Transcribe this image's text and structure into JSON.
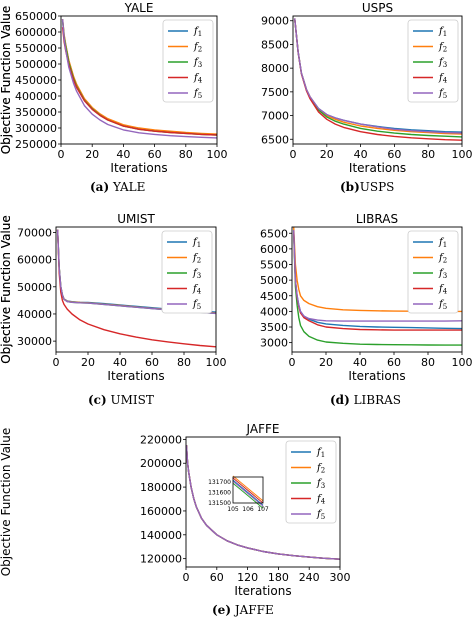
{
  "figure": {
    "captions": [
      {
        "tag": "(a)",
        "text": "YALE"
      },
      {
        "tag": "(b)",
        "text": "USPS"
      },
      {
        "tag": "(c)",
        "text": "UMIST"
      },
      {
        "tag": "(d)",
        "text": "LIBRAS"
      },
      {
        "tag": "(e)",
        "text": "JAFFE"
      }
    ],
    "series_colors": [
      "#1f77b4",
      "#ff7f0e",
      "#2ca02c",
      "#d62728",
      "#9467bd"
    ]
  },
  "chart_data": [
    {
      "type": "line",
      "title": "YALE",
      "xlabel": "Iterations",
      "ylabel": "Objective Function Value",
      "xlim": [
        0,
        100
      ],
      "ylim": [
        250000,
        650000
      ],
      "xticks": [
        0,
        20,
        40,
        60,
        80,
        100
      ],
      "yticks": [
        250000,
        300000,
        350000,
        400000,
        450000,
        500000,
        550000,
        600000,
        650000
      ],
      "ytick_labels": [
        "250000",
        "300000",
        "350000",
        "400000",
        "450000",
        "500000",
        "550000",
        "600000",
        "650000"
      ],
      "grid": false,
      "legend": "top-right",
      "x": [
        1,
        2,
        3,
        5,
        8,
        10,
        15,
        20,
        25,
        30,
        40,
        50,
        60,
        70,
        80,
        90,
        100
      ],
      "series": [
        {
          "name": "f1",
          "values": [
            640000,
            590000,
            560000,
            510000,
            460000,
            435000,
            390000,
            362000,
            342000,
            327000,
            308000,
            298000,
            292000,
            288000,
            285000,
            282000,
            280000
          ]
        },
        {
          "name": "f2",
          "values": [
            640000,
            592000,
            562000,
            512000,
            462000,
            437000,
            392000,
            364000,
            344000,
            329000,
            310000,
            300000,
            294000,
            290000,
            286000,
            283000,
            281000
          ]
        },
        {
          "name": "f3",
          "values": [
            635000,
            585000,
            555000,
            505000,
            455000,
            430000,
            387000,
            360000,
            340000,
            325000,
            306000,
            296000,
            290000,
            286000,
            283000,
            280000,
            278000
          ]
        },
        {
          "name": "f4",
          "values": [
            615000,
            570000,
            542000,
            497000,
            450000,
            427000,
            385000,
            358000,
            339000,
            325000,
            306000,
            296000,
            290000,
            286000,
            283000,
            280000,
            278000
          ]
        },
        {
          "name": "f5",
          "values": [
            640000,
            580000,
            545000,
            490000,
            440000,
            415000,
            370000,
            343000,
            325000,
            311000,
            294000,
            285000,
            280000,
            276000,
            273000,
            271000,
            269000
          ]
        }
      ]
    },
    {
      "type": "line",
      "title": "USPS",
      "xlabel": "Iterations",
      "ylabel": "Objective Function Value",
      "xlim": [
        0,
        100
      ],
      "ylim": [
        6400,
        9100
      ],
      "xticks": [
        0,
        20,
        40,
        60,
        80,
        100
      ],
      "yticks": [
        6500,
        7000,
        7500,
        8000,
        8500,
        9000
      ],
      "ytick_labels": [
        "6500",
        "7000",
        "7500",
        "8000",
        "8500",
        "9000"
      ],
      "grid": false,
      "legend": "top-right",
      "x": [
        1,
        2,
        3,
        5,
        8,
        10,
        15,
        20,
        25,
        30,
        40,
        50,
        60,
        70,
        80,
        90,
        100
      ],
      "series": [
        {
          "name": "f1",
          "values": [
            9050,
            8700,
            8350,
            7900,
            7550,
            7400,
            7150,
            7020,
            6950,
            6900,
            6820,
            6770,
            6730,
            6700,
            6680,
            6660,
            6650
          ]
        },
        {
          "name": "f2",
          "values": [
            9050,
            8700,
            8350,
            7900,
            7550,
            7400,
            7140,
            7000,
            6920,
            6860,
            6780,
            6730,
            6690,
            6660,
            6640,
            6620,
            6610
          ]
        },
        {
          "name": "f3",
          "values": [
            9050,
            8700,
            8340,
            7890,
            7540,
            7390,
            7120,
            6970,
            6880,
            6820,
            6730,
            6670,
            6630,
            6600,
            6580,
            6565,
            6550
          ]
        },
        {
          "name": "f4",
          "values": [
            9050,
            8700,
            8340,
            7880,
            7520,
            7360,
            7080,
            6920,
            6820,
            6750,
            6660,
            6600,
            6560,
            6530,
            6510,
            6490,
            6480
          ]
        },
        {
          "name": "f5",
          "values": [
            9050,
            8700,
            8350,
            7900,
            7550,
            7400,
            7150,
            7020,
            6950,
            6900,
            6820,
            6760,
            6710,
            6680,
            6660,
            6640,
            6630
          ]
        }
      ]
    },
    {
      "type": "line",
      "title": "UMIST",
      "xlabel": "Iterations",
      "ylabel": "Objective Function Value",
      "xlim": [
        0,
        100
      ],
      "ylim": [
        26000,
        72000
      ],
      "xticks": [
        0,
        20,
        40,
        60,
        80,
        100
      ],
      "yticks": [
        30000,
        40000,
        50000,
        60000,
        70000
      ],
      "ytick_labels": [
        "30000",
        "40000",
        "50000",
        "60000",
        "70000"
      ],
      "grid": false,
      "legend": "top-right",
      "x": [
        1,
        2,
        3,
        4,
        5,
        7,
        10,
        15,
        20,
        30,
        40,
        50,
        60,
        70,
        80,
        90,
        100
      ],
      "series": [
        {
          "name": "f1",
          "values": [
            71000,
            57000,
            50000,
            47000,
            45500,
            44800,
            44500,
            44300,
            44200,
            43800,
            43300,
            42800,
            42300,
            41800,
            41400,
            41000,
            40700
          ]
        },
        {
          "name": "f2",
          "values": [
            71000,
            57000,
            50000,
            47000,
            45500,
            44700,
            44400,
            44200,
            44100,
            43600,
            43100,
            42600,
            42100,
            41600,
            41100,
            40700,
            40300
          ]
        },
        {
          "name": "f3",
          "values": [
            71000,
            57000,
            50000,
            47000,
            45400,
            44600,
            44300,
            44100,
            44000,
            43500,
            43000,
            42500,
            42000,
            41500,
            41000,
            40600,
            40200
          ]
        },
        {
          "name": "f4",
          "values": [
            71000,
            55000,
            48000,
            45000,
            43500,
            41800,
            40000,
            37800,
            36300,
            34200,
            32700,
            31500,
            30500,
            29700,
            29000,
            28400,
            27900
          ]
        },
        {
          "name": "f5",
          "values": [
            71000,
            57000,
            50000,
            47000,
            45400,
            44600,
            44300,
            44100,
            44000,
            43500,
            43000,
            42500,
            42000,
            41500,
            41000,
            40600,
            40200
          ]
        }
      ]
    },
    {
      "type": "line",
      "title": "LIBRAS",
      "xlabel": "Iterations",
      "ylabel": "Objective Function Value",
      "xlim": [
        0,
        100
      ],
      "ylim": [
        2700,
        6700
      ],
      "xticks": [
        0,
        20,
        40,
        60,
        80,
        100
      ],
      "yticks": [
        3000,
        3500,
        4000,
        4500,
        5000,
        5500,
        6000,
        6500
      ],
      "ytick_labels": [
        "3000",
        "3500",
        "4000",
        "4500",
        "5000",
        "5500",
        "6000",
        "6500"
      ],
      "grid": false,
      "legend": "top-right",
      "x": [
        1,
        2,
        3,
        4,
        5,
        7,
        10,
        15,
        20,
        30,
        40,
        50,
        60,
        70,
        80,
        90,
        100
      ],
      "series": [
        {
          "name": "f1",
          "values": [
            6600,
            5000,
            4500,
            4200,
            4000,
            3850,
            3750,
            3650,
            3600,
            3550,
            3520,
            3500,
            3490,
            3480,
            3470,
            3460,
            3450
          ]
        },
        {
          "name": "f2",
          "values": [
            6700,
            5500,
            5000,
            4700,
            4500,
            4350,
            4250,
            4150,
            4100,
            4050,
            4030,
            4020,
            4010,
            4005,
            4000,
            4000,
            4000
          ]
        },
        {
          "name": "f3",
          "values": [
            6500,
            4800,
            4200,
            3800,
            3550,
            3350,
            3200,
            3080,
            3020,
            2980,
            2950,
            2940,
            2935,
            2930,
            2925,
            2922,
            2920
          ]
        },
        {
          "name": "f4",
          "values": [
            6550,
            5000,
            4450,
            4150,
            3950,
            3800,
            3700,
            3570,
            3500,
            3450,
            3420,
            3410,
            3400,
            3400,
            3400,
            3400,
            3400
          ]
        },
        {
          "name": "f5",
          "values": [
            6600,
            5000,
            4500,
            4200,
            4000,
            3850,
            3770,
            3720,
            3700,
            3690,
            3690,
            3690,
            3690,
            3690,
            3690,
            3690,
            3700
          ]
        }
      ]
    },
    {
      "type": "line",
      "title": "JAFFE",
      "xlabel": "Iterations",
      "ylabel": "Objective Function Value",
      "xlim": [
        0,
        300
      ],
      "ylim": [
        113000,
        222000
      ],
      "xticks": [
        0,
        60,
        120,
        180,
        240,
        300
      ],
      "yticks": [
        120000,
        140000,
        160000,
        180000,
        200000,
        220000
      ],
      "ytick_labels": [
        "120000",
        "140000",
        "160000",
        "180000",
        "200000",
        "220000"
      ],
      "grid": false,
      "legend": "top-right",
      "x": [
        1,
        3,
        5,
        10,
        15,
        20,
        30,
        40,
        60,
        80,
        100,
        120,
        150,
        180,
        210,
        240,
        270,
        300
      ],
      "series": [
        {
          "name": "f1",
          "values": [
            215000,
            201000,
            193000,
            180000,
            170500,
            163500,
            154000,
            148000,
            140000,
            135000,
            131500,
            129000,
            126000,
            124000,
            122500,
            121300,
            120300,
            119500
          ]
        },
        {
          "name": "f2",
          "values": [
            215000,
            201000,
            193000,
            180000,
            170500,
            163500,
            154000,
            148000,
            140000,
            135000,
            131500,
            129000,
            126000,
            124000,
            122500,
            121300,
            120300,
            119500
          ]
        },
        {
          "name": "f3",
          "values": [
            215000,
            201000,
            193000,
            180000,
            170500,
            163500,
            154000,
            148000,
            140000,
            135000,
            131500,
            129000,
            126000,
            124000,
            122500,
            121300,
            120300,
            119500
          ]
        },
        {
          "name": "f4",
          "values": [
            215000,
            201000,
            193000,
            180000,
            170500,
            163500,
            154000,
            148000,
            140000,
            135000,
            131500,
            129000,
            126000,
            124000,
            122500,
            121300,
            120300,
            119500
          ]
        },
        {
          "name": "f5",
          "values": [
            215000,
            201000,
            193000,
            180000,
            170500,
            163500,
            154000,
            148000,
            140000,
            135000,
            131500,
            129000,
            126000,
            124000,
            122500,
            121300,
            120300,
            119500
          ]
        }
      ],
      "inset": {
        "xlim": [
          105,
          107
        ],
        "ylim": [
          131500,
          131750
        ],
        "xticks": [
          105,
          106,
          107
        ],
        "yticks": [
          131500,
          131600,
          131700
        ],
        "ytick_labels": [
          "131500",
          "131600",
          "131700"
        ],
        "x": [
          105,
          107
        ],
        "series": [
          {
            "name": "f1",
            "values": [
              131720,
              131480
            ]
          },
          {
            "name": "f2",
            "values": [
              131760,
              131520
            ]
          },
          {
            "name": "f3",
            "values": [
              131690,
              131450
            ]
          },
          {
            "name": "f4",
            "values": [
              131740,
              131500
            ]
          },
          {
            "name": "f5",
            "values": [
              131710,
              131470
            ]
          }
        ]
      }
    }
  ]
}
